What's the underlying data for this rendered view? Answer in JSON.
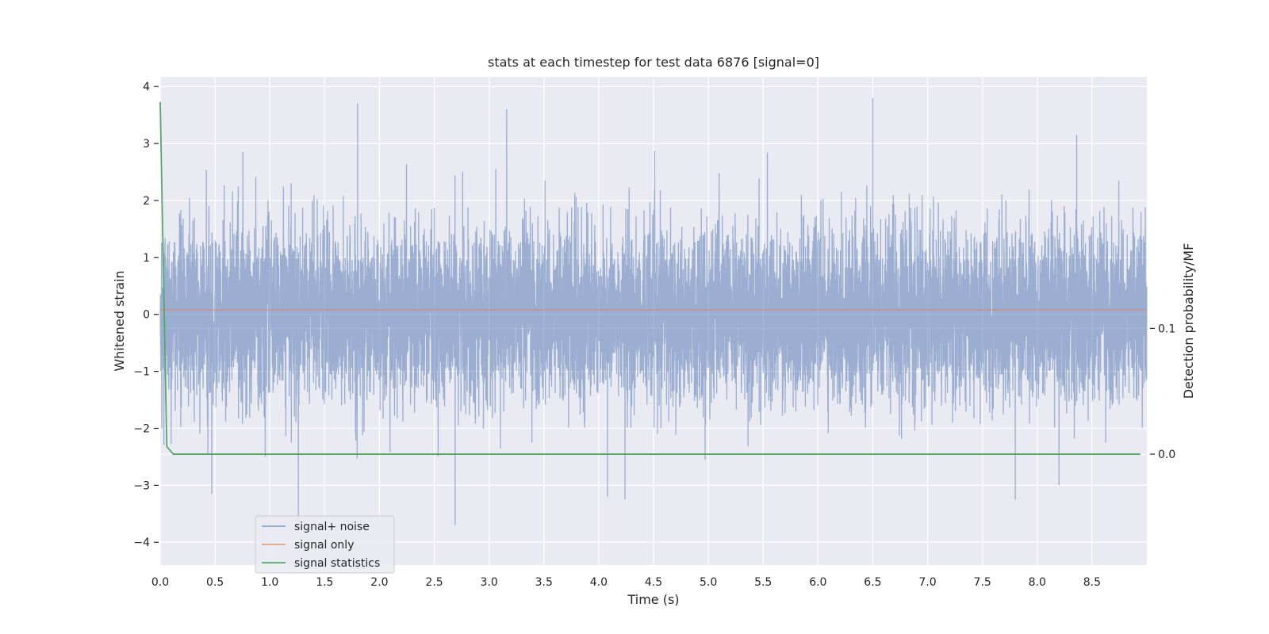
{
  "chart_data": {
    "type": "line",
    "title": "stats at each timestep for test data 6876 [signal=0]",
    "xlabel": "Time (s)",
    "ylabel": "Whitened strain",
    "y2label": "Detection probability/MF",
    "xlim": [
      0.0,
      9.0
    ],
    "ylim": [
      -4.4,
      4.17
    ],
    "y2lim": [
      -0.0882,
      0.3
    ],
    "xticks": [
      "0.0",
      "0.5",
      "1.0",
      "1.5",
      "2.0",
      "2.5",
      "3.0",
      "3.5",
      "4.0",
      "4.5",
      "5.0",
      "5.5",
      "6.0",
      "6.5",
      "7.0",
      "7.5",
      "8.0",
      "8.5"
    ],
    "yticks": [
      "4",
      "3",
      "2",
      "1",
      "0",
      "−1",
      "−2",
      "−3",
      "−4"
    ],
    "y2ticks": [
      "0.1",
      "0.0"
    ],
    "grid": true,
    "legend_position": "lower-left",
    "colors": {
      "background": "#eaeaf2",
      "grid": "#ffffff",
      "signal_plus_noise": "#4c72b0",
      "signal_only": "#dd8452",
      "signal_statistics": "#55a868"
    },
    "series": [
      {
        "name": "signal+ noise",
        "axis": "left",
        "kind": "whitened noise, sampled ~2048 Hz",
        "typical_std": 0.75,
        "extremes": [
          {
            "x": 1.8,
            "y": 3.7
          },
          {
            "x": 3.16,
            "y": 3.6
          },
          {
            "x": 6.5,
            "y": 3.8
          },
          {
            "x": 8.36,
            "y": 3.15
          },
          {
            "x": 2.69,
            "y": -3.7
          },
          {
            "x": 1.26,
            "y": -3.65
          },
          {
            "x": 7.8,
            "y": -3.25
          },
          {
            "x": 4.24,
            "y": -3.25
          },
          {
            "x": 0.47,
            "y": -3.15
          },
          {
            "x": 4.08,
            "y": -3.2
          }
        ]
      },
      {
        "name": "signal only",
        "axis": "left",
        "x": [
          0.0,
          9.0
        ],
        "y": [
          0.08,
          0.08
        ]
      },
      {
        "name": "signal statistics",
        "axis": "right",
        "x": [
          0.0,
          0.06,
          0.12,
          8.94
        ],
        "y": [
          0.28,
          0.006,
          0.0,
          0.0
        ]
      }
    ]
  }
}
